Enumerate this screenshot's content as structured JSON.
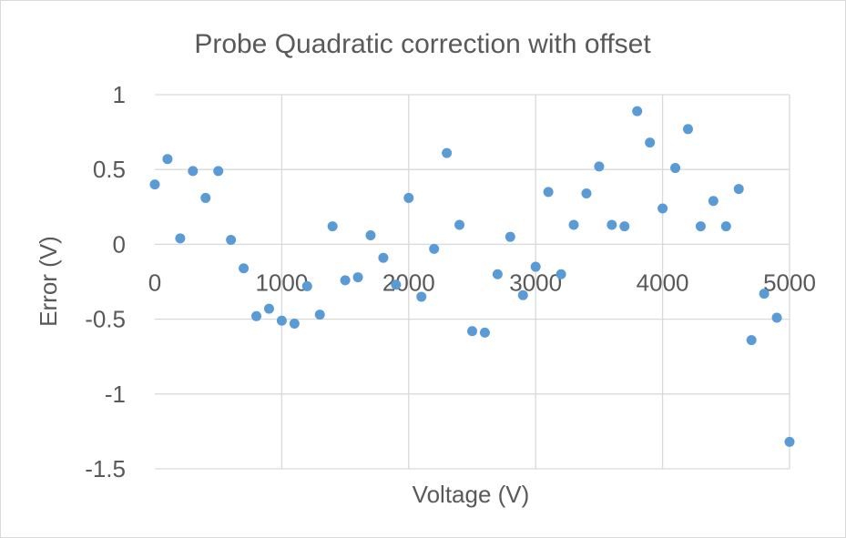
{
  "chart_data": {
    "type": "scatter",
    "title": "Probe Quadratic correction with offset",
    "xlabel": "Voltage (V)",
    "ylabel": "Error (V)",
    "xlim": [
      0,
      5000
    ],
    "ylim": [
      -1.5,
      1
    ],
    "x_ticks": [
      0,
      1000,
      2000,
      3000,
      4000,
      5000
    ],
    "x_tick_labels": [
      "0",
      "1000",
      "2000",
      "3000",
      "4000",
      "5000"
    ],
    "y_ticks": [
      1,
      0.5,
      0,
      -0.5,
      -1,
      -1.5
    ],
    "y_tick_labels": [
      "1",
      "0.5",
      "0",
      "-0.5",
      "-1",
      "-1.5"
    ],
    "x_tick_label_position": "at zero line",
    "grid": true,
    "legend": "none",
    "marker_color": "#5b9bd5",
    "series": [
      {
        "x": [
          0,
          100,
          200,
          300,
          400,
          500,
          600,
          700,
          800,
          900,
          1000,
          1100,
          1200,
          1300,
          1400,
          1500,
          1600,
          1700,
          1800,
          1900,
          2000,
          2100,
          2200,
          2300,
          2400,
          2500,
          2600,
          2700,
          2800,
          2900,
          3000,
          3100,
          3200,
          3300,
          3400,
          3500,
          3600,
          3700,
          3800,
          3900,
          4000,
          4100,
          4200,
          4300,
          4400,
          4500,
          4600,
          4700,
          4800,
          4900,
          5000
        ],
        "y": [
          0.4,
          0.57,
          0.04,
          0.49,
          0.31,
          0.49,
          0.03,
          -0.16,
          -0.48,
          -0.43,
          -0.51,
          -0.53,
          -0.28,
          -0.47,
          0.12,
          -0.24,
          -0.22,
          0.06,
          -0.09,
          -0.27,
          0.31,
          -0.35,
          -0.03,
          0.61,
          0.13,
          -0.58,
          -0.59,
          -0.2,
          0.05,
          -0.34,
          -0.15,
          0.35,
          -0.2,
          0.13,
          0.34,
          0.52,
          0.13,
          0.12,
          0.89,
          0.68,
          0.24,
          0.51,
          0.77,
          0.12,
          0.29,
          0.12,
          0.37,
          -0.64,
          -0.33,
          -0.49,
          -1.32
        ]
      }
    ]
  }
}
